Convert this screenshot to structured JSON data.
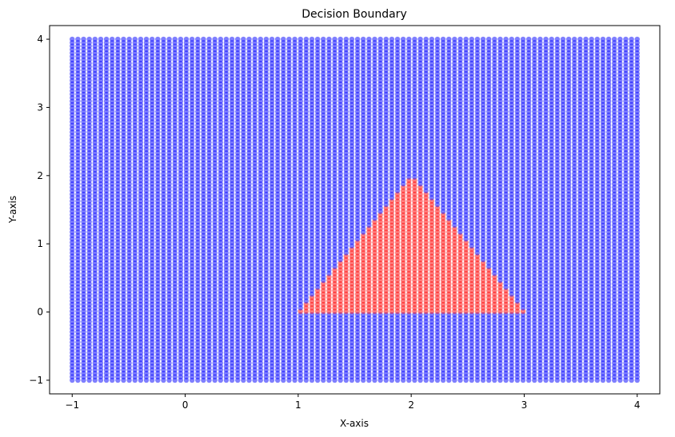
{
  "chart_data": {
    "type": "scatter",
    "title": "Decision Boundary",
    "xlabel": "X-axis",
    "ylabel": "Y-axis",
    "xlim": [
      -1.2,
      4.2
    ],
    "ylim": [
      -1.2,
      4.2
    ],
    "xticks": [
      -1,
      0,
      1,
      2,
      3,
      4
    ],
    "yticks": [
      -1,
      0,
      1,
      2,
      3,
      4
    ],
    "xtick_labels": [
      "−1",
      "0",
      "1",
      "2",
      "3",
      "4"
    ],
    "ytick_labels": [
      "−1",
      "0",
      "1",
      "2",
      "3",
      "4"
    ],
    "grid": false,
    "legend": "none",
    "series": [
      {
        "class": "outside",
        "color": "#0000ff",
        "alpha": 0.5,
        "grid_x_range": [
          -1,
          4
        ],
        "grid_y_range": [
          -1,
          4
        ],
        "grid_points_per_axis": 100
      },
      {
        "class": "inside triangle",
        "color": "#ff0000",
        "alpha": 0.5,
        "region_vertices": [
          [
            1,
            0
          ],
          [
            3,
            0
          ],
          [
            2,
            2
          ]
        ]
      }
    ]
  }
}
